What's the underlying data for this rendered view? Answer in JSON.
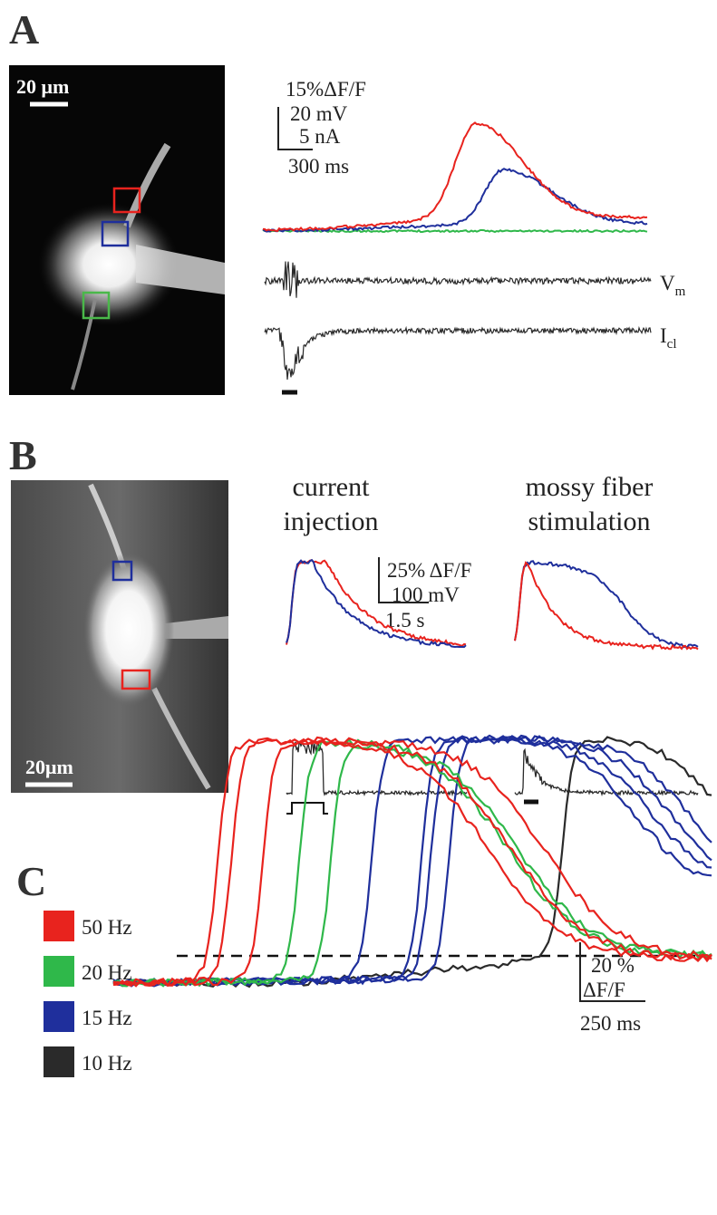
{
  "panel_a": {
    "label": "A",
    "image_scale": "20 μm",
    "scale_bar": [
      "15%ΔF/F",
      "20 mV",
      "5 nA",
      "300 ms"
    ],
    "traces": [
      {
        "label": "V",
        "subscript": "m"
      },
      {
        "label": "I",
        "subscript": "cl"
      }
    ]
  },
  "panel_b": {
    "label": "B",
    "image_scale": "20μm",
    "columns": [
      {
        "title": [
          "current",
          "injection"
        ]
      },
      {
        "title": [
          "mossy fiber",
          "stimulation"
        ]
      }
    ],
    "scale_bar": [
      "25% ΔF/F",
      "100 mV",
      "1.5 s"
    ]
  },
  "panel_c": {
    "label": "C",
    "legend": [
      {
        "name": "50 Hz",
        "color": "#e8231e"
      },
      {
        "name": "20 Hz",
        "color": "#2fb84a"
      },
      {
        "name": "15 Hz",
        "color": "#1f2f9c"
      },
      {
        "name": "10 Hz",
        "color": "#2a2a2a"
      }
    ],
    "scale_bar": [
      "20 %",
      "ΔF/F",
      "250 ms"
    ]
  }
}
